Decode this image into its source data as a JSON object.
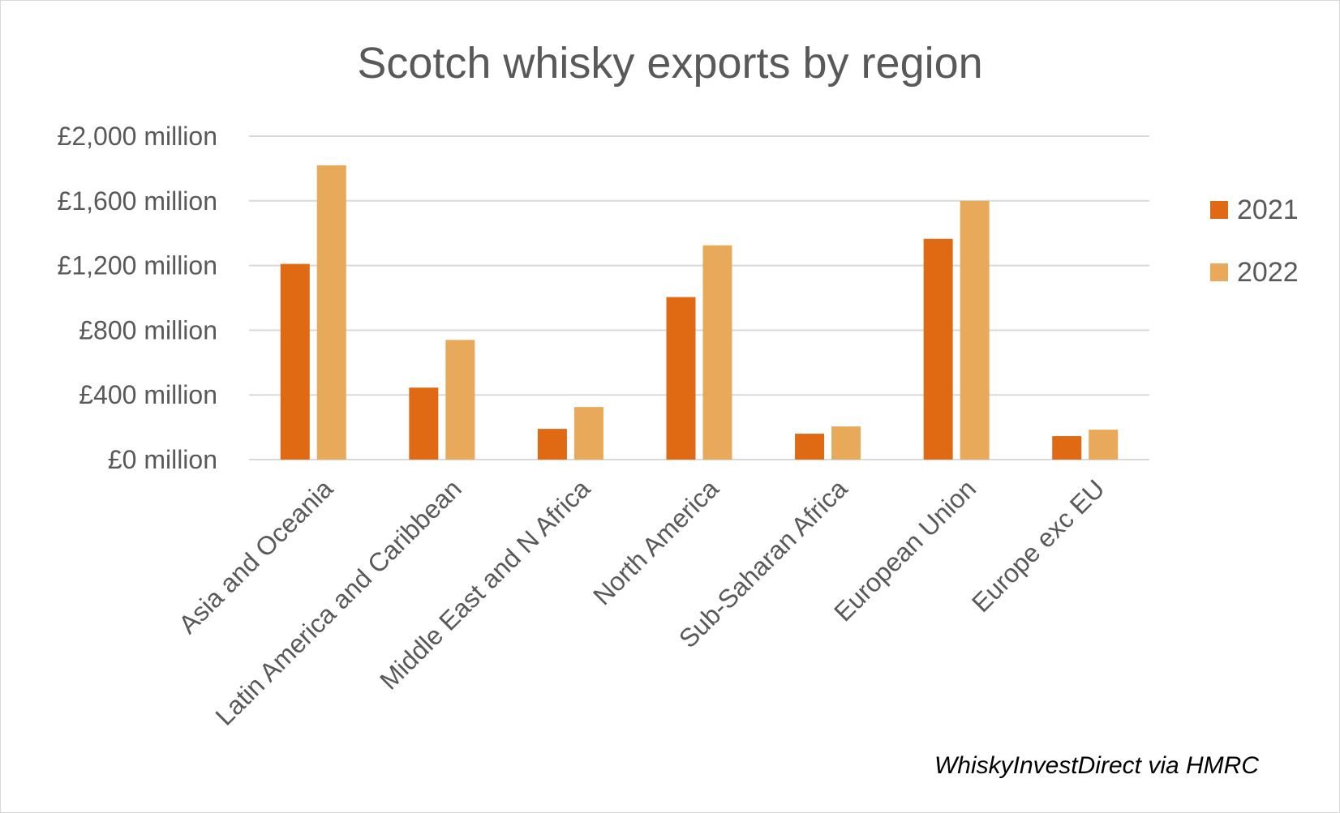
{
  "chart_data": {
    "type": "bar",
    "title": "Scotch whisky exports by region",
    "categories": [
      "Asia and Oceania",
      "Latin America and Caribbean",
      "Middle East and N Africa",
      "North America",
      "Sub-Saharan Africa",
      "European Union",
      "Europe exc EU"
    ],
    "series": [
      {
        "name": "2021",
        "color": "#e06914",
        "values": [
          1210,
          445,
          190,
          1005,
          160,
          1365,
          145
        ]
      },
      {
        "name": "2022",
        "color": "#e8aa5a",
        "values": [
          1820,
          740,
          325,
          1325,
          205,
          1600,
          185
        ]
      }
    ],
    "ylim": [
      0,
      2000
    ],
    "yticks": [
      0,
      400,
      800,
      1200,
      1600,
      2000
    ],
    "ytick_labels": [
      "£0 million",
      "£400 million",
      "£800 million",
      "£1,200 million",
      "£1,600 million",
      "£2,000 million"
    ],
    "xlabel": "",
    "ylabel": "",
    "grid": true,
    "legend_position": "right",
    "source": "WhiskyInvestDirect via HMRC"
  }
}
